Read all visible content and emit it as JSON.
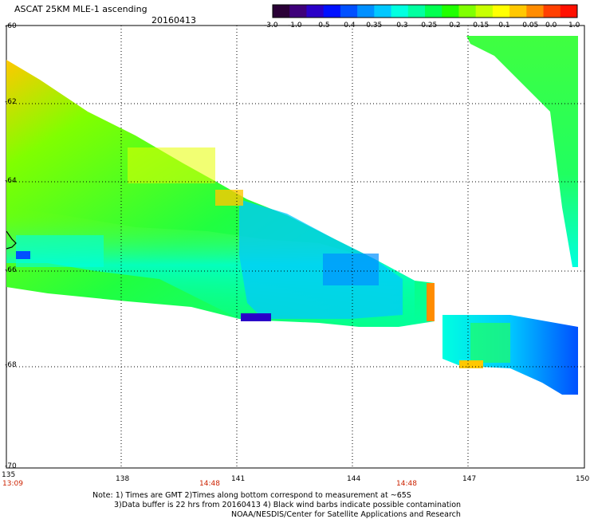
{
  "header": {
    "title": "ASCAT 25KM MLE-1 ascending",
    "date": "20160413"
  },
  "colorbar": {
    "labels": [
      "-3.0",
      "-1.0",
      "-0.5",
      "-0.4",
      "-0.35",
      "-0.3",
      "-0.25",
      "-0.2",
      "-0.15",
      "-0.1",
      "-0.05",
      "0.0",
      "1.0"
    ],
    "colors": [
      "#2a0036",
      "#3e007a",
      "#2a00c8",
      "#0010ff",
      "#0050ff",
      "#0090ff",
      "#00c8ff",
      "#00ffe0",
      "#00ffa0",
      "#00ff50",
      "#20ff00",
      "#80ff00",
      "#c8ff00",
      "#ffff00",
      "#ffc800",
      "#ff8c00",
      "#ff4000",
      "#ff1000"
    ]
  },
  "axes": {
    "lat_labels": [
      "-60",
      "-62",
      "-64",
      "-66",
      "-68",
      "-70"
    ],
    "lon_labels": [
      "135",
      "138",
      "141",
      "144",
      "147",
      "150"
    ]
  },
  "times": [
    "13:09",
    "14:48",
    "14:48"
  ],
  "notes": {
    "line1": "Note: 1) Times are GMT 2)Times along bottom correspond to measurement at ~65S",
    "line2": "3)Data buffer is 22 hrs from 20160413 4) Black wind barbs indicate possible contamination",
    "line3": "NOAA/NESDIS/Center for Satellite Applications and Research"
  }
}
